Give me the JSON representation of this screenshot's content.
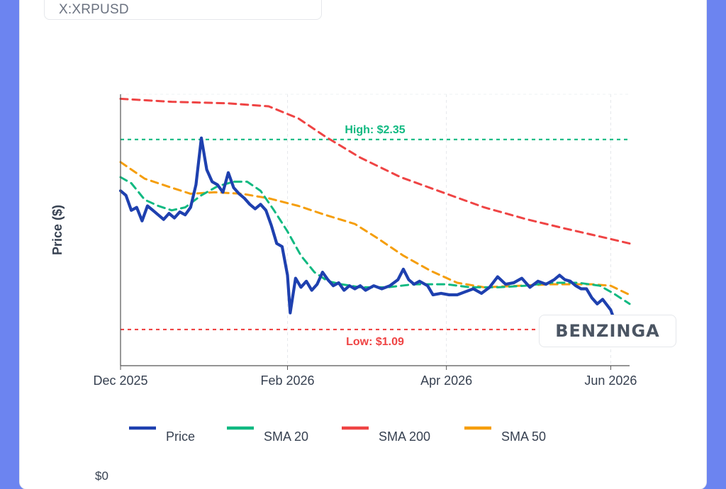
{
  "ticker": "X:XRPUSD",
  "watermark": "BENZINGA",
  "second_chart_first_tick": "$0",
  "chart_data": {
    "type": "line",
    "ylabel": "Price ($)",
    "xlabel": "",
    "x_range": [
      "2025-12-01",
      "2026-06-08"
    ],
    "ylim": [
      0.85,
      2.65
    ],
    "x_ticks": [
      {
        "date": "2025-12-01",
        "label": "Dec 2025"
      },
      {
        "date": "2026-02-01",
        "label": "Feb 2026"
      },
      {
        "date": "2026-04-01",
        "label": "Apr 2026"
      },
      {
        "date": "2026-06-01",
        "label": "Jun 2026"
      }
    ],
    "grid": true,
    "legend_position": "bottom",
    "reference_lines": [
      {
        "name": "high",
        "label": "High: $2.35",
        "value": 2.35,
        "color": "#10b981"
      },
      {
        "name": "low",
        "label": "Low: $1.09",
        "value": 1.09,
        "color": "#ef4444"
      }
    ],
    "series": [
      {
        "name": "Price",
        "color": "#1e40af",
        "dash": false,
        "points": [
          [
            "2025-12-01",
            2.01
          ],
          [
            "2025-12-03",
            1.98
          ],
          [
            "2025-12-05",
            1.88
          ],
          [
            "2025-12-07",
            1.9
          ],
          [
            "2025-12-09",
            1.81
          ],
          [
            "2025-12-11",
            1.91
          ],
          [
            "2025-12-13",
            1.88
          ],
          [
            "2025-12-15",
            1.85
          ],
          [
            "2025-12-17",
            1.82
          ],
          [
            "2025-12-19",
            1.86
          ],
          [
            "2025-12-21",
            1.83
          ],
          [
            "2025-12-23",
            1.87
          ],
          [
            "2025-12-25",
            1.85
          ],
          [
            "2025-12-27",
            1.9
          ],
          [
            "2025-12-29",
            2.05
          ],
          [
            "2025-12-31",
            2.36
          ],
          [
            "2026-01-02",
            2.15
          ],
          [
            "2026-01-04",
            2.07
          ],
          [
            "2026-01-06",
            2.05
          ],
          [
            "2026-01-08",
            2.0
          ],
          [
            "2026-01-10",
            2.13
          ],
          [
            "2026-01-12",
            2.03
          ],
          [
            "2026-01-14",
            1.99
          ],
          [
            "2026-01-16",
            1.96
          ],
          [
            "2026-01-18",
            1.92
          ],
          [
            "2026-01-20",
            1.89
          ],
          [
            "2026-01-22",
            1.92
          ],
          [
            "2026-01-24",
            1.88
          ],
          [
            "2026-01-26",
            1.78
          ],
          [
            "2026-01-28",
            1.66
          ],
          [
            "2026-01-30",
            1.64
          ],
          [
            "2026-02-01",
            1.45
          ],
          [
            "2026-02-02",
            1.2
          ],
          [
            "2026-02-04",
            1.43
          ],
          [
            "2026-02-06",
            1.37
          ],
          [
            "2026-02-08",
            1.41
          ],
          [
            "2026-02-10",
            1.35
          ],
          [
            "2026-02-12",
            1.39
          ],
          [
            "2026-02-14",
            1.47
          ],
          [
            "2026-02-16",
            1.42
          ],
          [
            "2026-02-18",
            1.38
          ],
          [
            "2026-02-20",
            1.4
          ],
          [
            "2026-02-22",
            1.35
          ],
          [
            "2026-02-24",
            1.38
          ],
          [
            "2026-02-26",
            1.36
          ],
          [
            "2026-02-28",
            1.38
          ],
          [
            "2026-03-02",
            1.35
          ],
          [
            "2026-03-05",
            1.38
          ],
          [
            "2026-03-08",
            1.36
          ],
          [
            "2026-03-11",
            1.38
          ],
          [
            "2026-03-14",
            1.42
          ],
          [
            "2026-03-16",
            1.49
          ],
          [
            "2026-03-18",
            1.42
          ],
          [
            "2026-03-20",
            1.39
          ],
          [
            "2026-03-22",
            1.41
          ],
          [
            "2026-03-25",
            1.38
          ],
          [
            "2026-03-27",
            1.32
          ],
          [
            "2026-03-30",
            1.33
          ],
          [
            "2026-04-02",
            1.32
          ],
          [
            "2026-04-05",
            1.32
          ],
          [
            "2026-04-08",
            1.34
          ],
          [
            "2026-04-11",
            1.36
          ],
          [
            "2026-04-14",
            1.33
          ],
          [
            "2026-04-17",
            1.37
          ],
          [
            "2026-04-20",
            1.44
          ],
          [
            "2026-04-23",
            1.39
          ],
          [
            "2026-04-26",
            1.4
          ],
          [
            "2026-04-29",
            1.43
          ],
          [
            "2026-05-02",
            1.37
          ],
          [
            "2026-05-05",
            1.41
          ],
          [
            "2026-05-08",
            1.39
          ],
          [
            "2026-05-11",
            1.42
          ],
          [
            "2026-05-13",
            1.45
          ],
          [
            "2026-05-15",
            1.42
          ],
          [
            "2026-05-17",
            1.41
          ],
          [
            "2026-05-19",
            1.38
          ],
          [
            "2026-05-21",
            1.36
          ],
          [
            "2026-05-23",
            1.36
          ],
          [
            "2026-05-25",
            1.3
          ],
          [
            "2026-05-27",
            1.26
          ],
          [
            "2026-05-29",
            1.29
          ],
          [
            "2026-06-01",
            1.22
          ],
          [
            "2026-06-03",
            1.12
          ],
          [
            "2026-06-05",
            1.13
          ],
          [
            "2026-06-08",
            1.1
          ]
        ]
      },
      {
        "name": "SMA 20",
        "color": "#10b981",
        "dash": true,
        "points": [
          [
            "2025-12-01",
            2.1
          ],
          [
            "2025-12-05",
            2.06
          ],
          [
            "2025-12-10",
            1.95
          ],
          [
            "2025-12-15",
            1.91
          ],
          [
            "2025-12-20",
            1.88
          ],
          [
            "2025-12-25",
            1.9
          ],
          [
            "2025-12-31",
            1.98
          ],
          [
            "2026-01-06",
            2.04
          ],
          [
            "2026-01-12",
            2.07
          ],
          [
            "2026-01-17",
            2.07
          ],
          [
            "2026-01-22",
            2.01
          ],
          [
            "2026-01-27",
            1.88
          ],
          [
            "2026-02-01",
            1.74
          ],
          [
            "2026-02-06",
            1.58
          ],
          [
            "2026-02-11",
            1.47
          ],
          [
            "2026-02-16",
            1.41
          ],
          [
            "2026-02-21",
            1.39
          ],
          [
            "2026-02-28",
            1.37
          ],
          [
            "2026-03-10",
            1.37
          ],
          [
            "2026-03-20",
            1.39
          ],
          [
            "2026-04-01",
            1.39
          ],
          [
            "2026-04-10",
            1.37
          ],
          [
            "2026-04-20",
            1.37
          ],
          [
            "2026-04-30",
            1.38
          ],
          [
            "2026-05-10",
            1.4
          ],
          [
            "2026-05-20",
            1.4
          ],
          [
            "2026-05-28",
            1.38
          ],
          [
            "2026-06-02",
            1.33
          ],
          [
            "2026-06-08",
            1.26
          ]
        ]
      },
      {
        "name": "SMA 200",
        "color": "#ef4444",
        "dash": true,
        "points": [
          [
            "2025-12-01",
            2.62
          ],
          [
            "2025-12-20",
            2.6
          ],
          [
            "2026-01-10",
            2.59
          ],
          [
            "2026-01-25",
            2.57
          ],
          [
            "2026-02-05",
            2.49
          ],
          [
            "2026-02-15",
            2.37
          ],
          [
            "2026-02-28",
            2.23
          ],
          [
            "2026-03-15",
            2.1
          ],
          [
            "2026-04-01",
            1.99
          ],
          [
            "2026-04-15",
            1.9
          ],
          [
            "2026-05-01",
            1.82
          ],
          [
            "2026-05-15",
            1.76
          ],
          [
            "2026-06-01",
            1.69
          ],
          [
            "2026-06-08",
            1.66
          ]
        ]
      },
      {
        "name": "SMA 50",
        "color": "#f59e0b",
        "dash": true,
        "points": [
          [
            "2025-12-01",
            2.2
          ],
          [
            "2025-12-10",
            2.09
          ],
          [
            "2025-12-20",
            2.03
          ],
          [
            "2025-12-27",
            1.99
          ],
          [
            "2026-01-05",
            2.0
          ],
          [
            "2026-01-15",
            1.99
          ],
          [
            "2026-01-25",
            1.96
          ],
          [
            "2026-02-05",
            1.91
          ],
          [
            "2026-02-15",
            1.85
          ],
          [
            "2026-02-26",
            1.79
          ],
          [
            "2026-03-06",
            1.7
          ],
          [
            "2026-03-16",
            1.58
          ],
          [
            "2026-03-26",
            1.48
          ],
          [
            "2026-04-05",
            1.4
          ],
          [
            "2026-04-15",
            1.37
          ],
          [
            "2026-04-28",
            1.38
          ],
          [
            "2026-05-10",
            1.39
          ],
          [
            "2026-05-25",
            1.39
          ],
          [
            "2026-06-01",
            1.38
          ],
          [
            "2026-06-08",
            1.32
          ]
        ]
      }
    ]
  }
}
